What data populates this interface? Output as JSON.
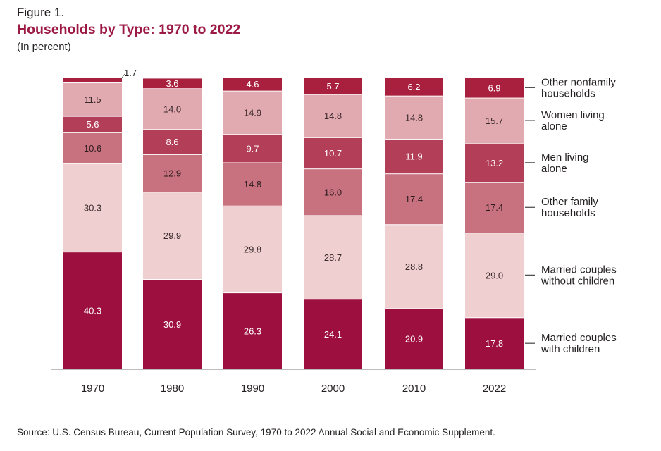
{
  "figure_label": "Figure 1.",
  "title": "Households by Type: 1970 to 2022",
  "subtitle": "(In percent)",
  "source": "Source: U.S. Census Bureau, Current Population Survey, 1970 to 2022 Annual Social and Economic Supplement.",
  "chart_data": {
    "type": "bar",
    "stacked": true,
    "title": "Households by Type: 1970 to 2022",
    "ylabel": "In percent",
    "ylim": [
      0,
      100
    ],
    "grid": false,
    "legend_position": "right",
    "categories": [
      "1970",
      "1980",
      "1990",
      "2000",
      "2010",
      "2022"
    ],
    "series": [
      {
        "name": "Married couples with children",
        "color": "#9c0f3f",
        "label_color": "#ffffff",
        "values": [
          40.3,
          30.9,
          26.3,
          24.1,
          20.9,
          17.8
        ]
      },
      {
        "name": "Married couples without children",
        "color": "#efcfd0",
        "label_color": "#3a2a2c",
        "values": [
          30.3,
          29.9,
          29.8,
          28.7,
          28.8,
          29.0
        ]
      },
      {
        "name": "Other family households",
        "color": "#c9727f",
        "label_color": "#2b1b1e",
        "values": [
          10.6,
          12.9,
          14.8,
          16.0,
          17.4,
          17.4
        ]
      },
      {
        "name": "Men living alone",
        "color": "#b23e58",
        "label_color": "#ffffff",
        "values": [
          5.6,
          8.6,
          9.7,
          10.7,
          11.9,
          13.2
        ]
      },
      {
        "name": "Women living alone",
        "color": "#e1a9b0",
        "label_color": "#3a2a2c",
        "values": [
          11.5,
          14.0,
          14.9,
          14.8,
          14.8,
          15.7
        ]
      },
      {
        "name": "Other nonfamily households",
        "color": "#a9203f",
        "label_color": "#ffffff",
        "values": [
          1.7,
          3.6,
          4.6,
          5.7,
          6.2,
          6.9
        ]
      }
    ],
    "labels": [
      [
        "40.3",
        "30.9",
        "26.3",
        "24.1",
        "20.9",
        "17.8"
      ],
      [
        "30.3",
        "29.9",
        "29.8",
        "28.7",
        "28.8",
        "29.0"
      ],
      [
        "10.6",
        "12.9",
        "14.8",
        "16.0",
        "17.4",
        "17.4"
      ],
      [
        "5.6",
        "8.6",
        "9.7",
        "10.7",
        "11.9",
        "13.2"
      ],
      [
        "11.5",
        "14.0",
        "14.9",
        "14.8",
        "14.8",
        "15.7"
      ],
      [
        "1.7",
        "3.6",
        "4.6",
        "5.7",
        "6.2",
        "6.9"
      ]
    ],
    "legend": [
      {
        "lines": [
          "Other nonfamily",
          "households"
        ]
      },
      {
        "lines": [
          "Women living",
          "alone"
        ]
      },
      {
        "lines": [
          "Men living",
          "alone"
        ]
      },
      {
        "lines": [
          "Other family",
          "households"
        ]
      },
      {
        "lines": [
          "Married couples",
          "without children"
        ]
      },
      {
        "lines": [
          "Married couples",
          "with children"
        ]
      }
    ]
  }
}
